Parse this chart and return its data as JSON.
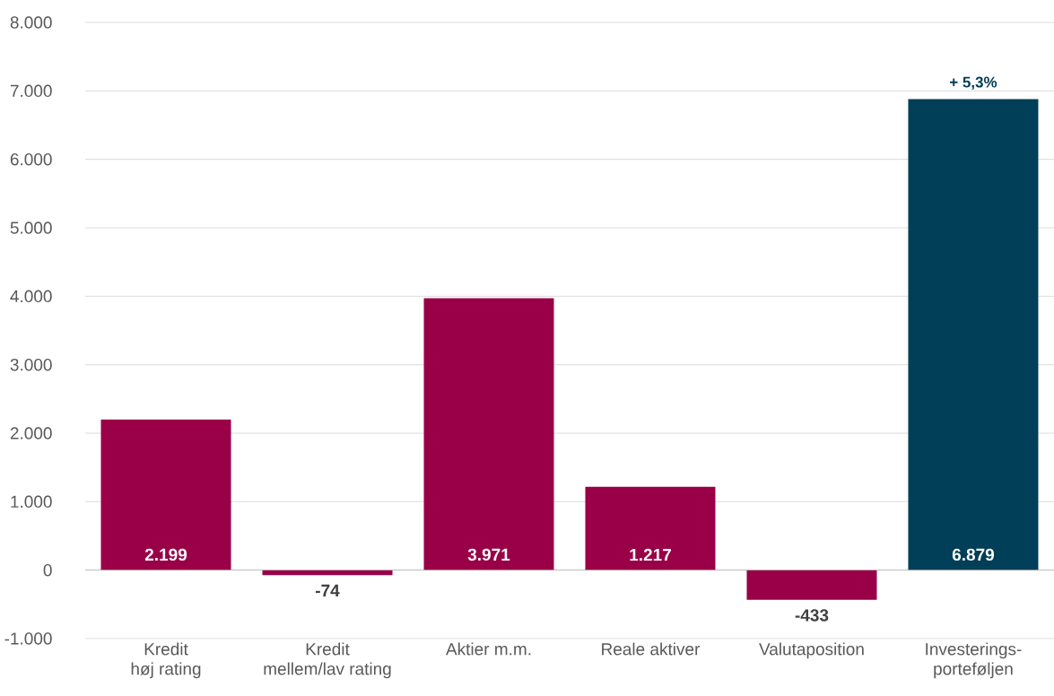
{
  "chart_data": {
    "type": "bar",
    "categories": [
      "Kredit\nhøj rating",
      "Kredit\nmellem/lav rating",
      "Aktier m.m.",
      "Reale aktiver",
      "Valutaposition",
      "Investerings-\nporteføljen"
    ],
    "values": [
      2199,
      -74,
      3971,
      1217,
      -433,
      6879
    ],
    "colors": [
      "#990047",
      "#990047",
      "#990047",
      "#990047",
      "#990047",
      "#003f57"
    ],
    "value_labels": [
      "2.199",
      "-74",
      "3.971",
      "1.217",
      "-433",
      "6.879"
    ],
    "annotations": [
      {
        "text": "+ 5,3%",
        "x": "Investerings-\nporteføljen",
        "y": 6879
      }
    ],
    "ylim": [
      -1000,
      8000
    ],
    "yticks": [
      {
        "value": -1000,
        "label": "-1.000"
      },
      {
        "value": 0,
        "label": "0"
      },
      {
        "value": 1000,
        "label": "1.000"
      },
      {
        "value": 2000,
        "label": "2.000"
      },
      {
        "value": 3000,
        "label": "3.000"
      },
      {
        "value": 4000,
        "label": "4.000"
      },
      {
        "value": 5000,
        "label": "5.000"
      },
      {
        "value": 6000,
        "label": "6.000"
      },
      {
        "value": 7000,
        "label": "7.000"
      },
      {
        "value": 8000,
        "label": "8.000"
      }
    ],
    "grid": "y"
  }
}
